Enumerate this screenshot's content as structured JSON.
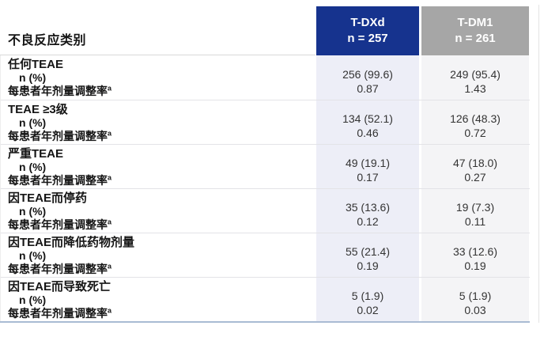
{
  "table": {
    "category_header": "不良反应类别",
    "columns": [
      {
        "name": "T-DXd",
        "n_label": "n = 257"
      },
      {
        "name": "T-DM1",
        "n_label": "n = 261"
      }
    ],
    "sublabels": {
      "n_pct": "n (%)",
      "rate": "每患者年剂量调整率",
      "rate_footnote_marker": "a"
    },
    "rows": [
      {
        "category": "任何TEAE",
        "tdxd_n": "256 (99.6)",
        "tdxd_rate": "0.87",
        "tdm1_n": "249 (95.4)",
        "tdm1_rate": "1.43"
      },
      {
        "category": "TEAE ≥3级",
        "tdxd_n": "134 (52.1)",
        "tdxd_rate": "0.46",
        "tdm1_n": "126 (48.3)",
        "tdm1_rate": "0.72"
      },
      {
        "category": "严重TEAE",
        "tdxd_n": "49 (19.1)",
        "tdxd_rate": "0.17",
        "tdm1_n": "47 (18.0)",
        "tdm1_rate": "0.27"
      },
      {
        "category": "因TEAE而停药",
        "tdxd_n": "35 (13.6)",
        "tdxd_rate": "0.12",
        "tdm1_n": "19 (7.3)",
        "tdm1_rate": "0.11"
      },
      {
        "category": "因TEAE而降低药物剂量",
        "tdxd_n": "55 (21.4)",
        "tdxd_rate": "0.19",
        "tdm1_n": "33 (12.6)",
        "tdm1_rate": "0.19"
      },
      {
        "category": "因TEAE而导致死亡",
        "tdxd_n": "5 (1.9)",
        "tdxd_rate": "0.02",
        "tdm1_n": "5 (1.9)",
        "tdm1_rate": "0.03"
      }
    ],
    "colors": {
      "tdxd_header_bg": "#16338e",
      "tdm1_header_bg": "#a6a6a6",
      "header_text": "#ffffff",
      "tdxd_column_bg": "#edeef7",
      "tdm1_column_bg": "#f4f4f6",
      "row_divider": "#e3e3e7",
      "bottom_rule": "#a9bbd3",
      "label_text": "#151515",
      "value_text": "#333333"
    }
  }
}
